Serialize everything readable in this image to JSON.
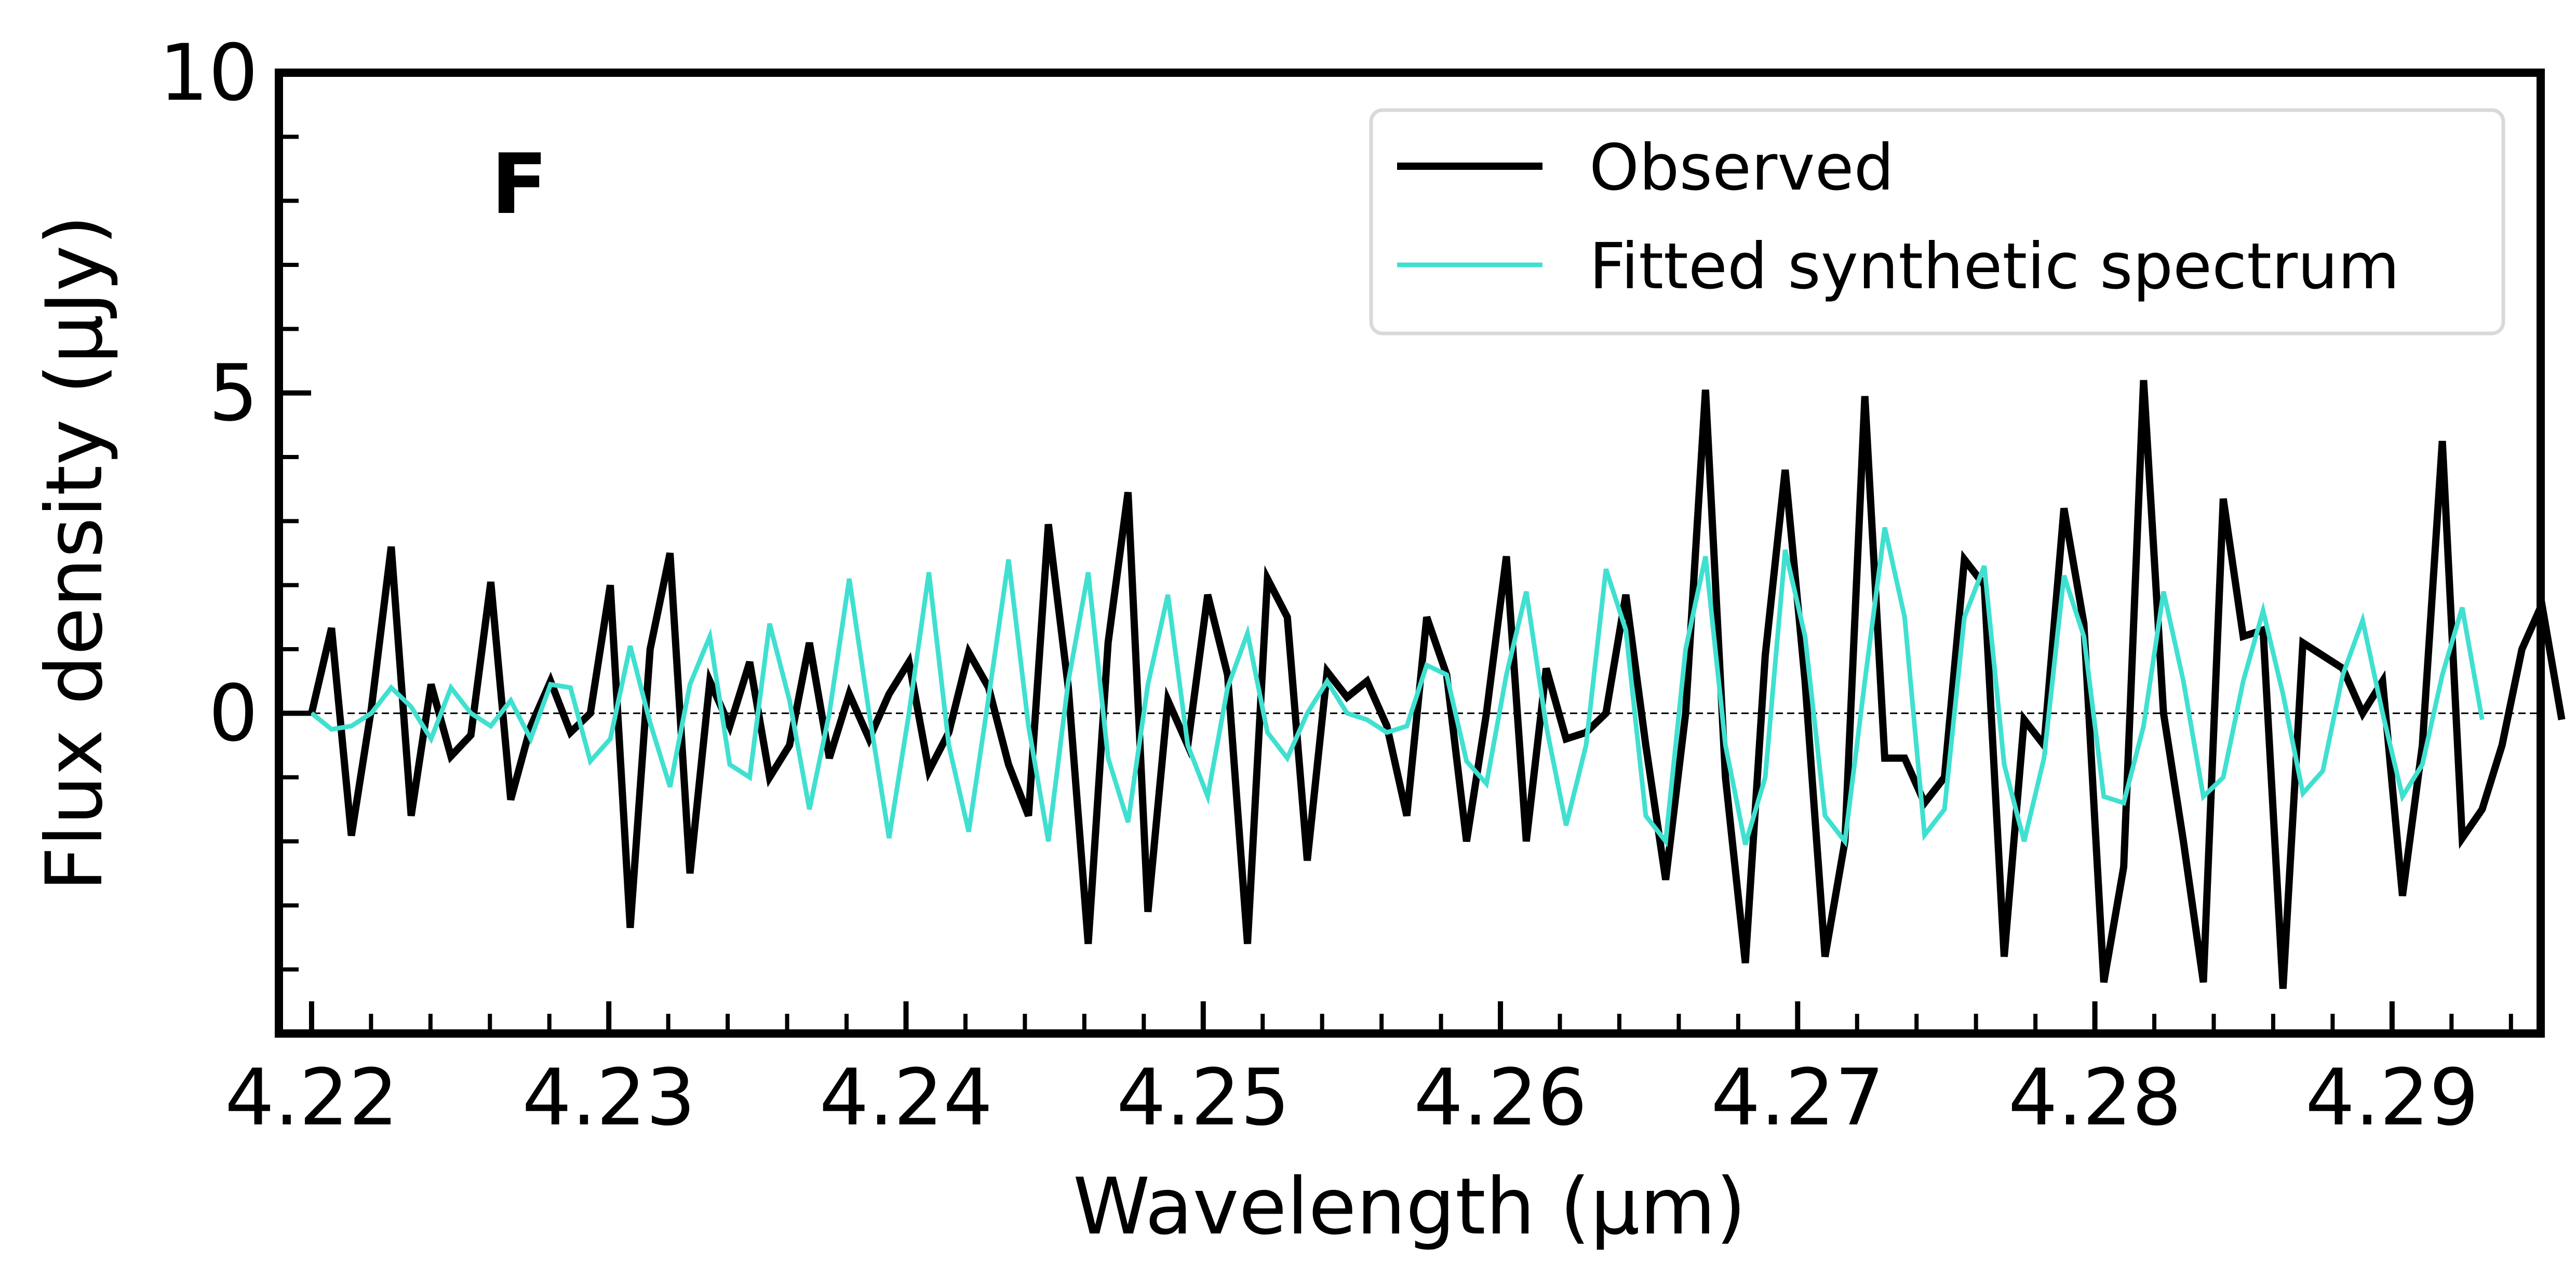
{
  "chart_data": {
    "type": "line",
    "panel_label": "F",
    "xlabel": "Wavelength (μm)",
    "ylabel": "Flux density (μJy)",
    "xlim": [
      4.2189,
      4.295
    ],
    "ylim": [
      -5,
      10
    ],
    "x_ticks": [
      4.22,
      4.23,
      4.24,
      4.25,
      4.26,
      4.27,
      4.28,
      4.29
    ],
    "x_tick_labels": [
      "4.22",
      "4.23",
      "4.24",
      "4.25",
      "4.26",
      "4.27",
      "4.28",
      "4.29"
    ],
    "y_ticks": [
      0,
      5,
      10
    ],
    "y_tick_labels": [
      "0",
      "5",
      "10"
    ],
    "x_minor_step": 0.002,
    "y_minor_step": 1,
    "reference_line": 0,
    "legend_position": "upper right",
    "colors": {
      "observed": "#000000",
      "fit": "#40E0D0",
      "reference": "#000000",
      "frame": "#000000"
    },
    "x_start": 4.22,
    "x_step": 0.00067,
    "series": [
      {
        "name": "Observed",
        "values": [
          0.0,
          1.33,
          -1.91,
          0.07,
          2.6,
          -1.6,
          0.45,
          -0.67,
          -0.34,
          2.05,
          -1.35,
          -0.21,
          0.5,
          -0.3,
          0.0,
          2.0,
          -3.35,
          1.0,
          2.5,
          -2.5,
          0.5,
          -0.2,
          0.8,
          -1.0,
          -0.5,
          1.1,
          -0.7,
          0.3,
          -0.4,
          0.3,
          0.8,
          -0.9,
          -0.3,
          0.95,
          0.4,
          -0.8,
          -1.6,
          2.95,
          0.4,
          -3.6,
          1.1,
          3.45,
          -3.1,
          0.2,
          -0.5,
          1.85,
          0.6,
          -3.6,
          2.1,
          1.5,
          -2.3,
          0.65,
          0.25,
          0.5,
          -0.2,
          -1.6,
          1.5,
          0.6,
          -2.0,
          0.0,
          2.45,
          -2.0,
          0.7,
          -0.4,
          -0.3,
          0.0,
          1.85,
          -0.5,
          -2.6,
          0.0,
          5.05,
          -1.0,
          -3.9,
          0.9,
          3.8,
          0.5,
          -3.8,
          -2.0,
          4.95,
          -0.7,
          -0.7,
          -1.4,
          -1.0,
          2.4,
          2.0,
          -3.8,
          -0.1,
          -0.5,
          3.2,
          1.4,
          -4.2,
          -2.4,
          5.2,
          0.0,
          -2.0,
          -4.2,
          3.35,
          1.2,
          1.3,
          -4.3,
          1.1,
          0.9,
          0.7,
          0.0,
          0.5,
          -2.85,
          -0.5,
          4.25,
          -1.95,
          -1.5,
          -0.5,
          1.0,
          1.7,
          -0.1
        ]
      },
      {
        "name": "Fitted synthetic spectrum",
        "values": [
          0.0,
          -0.25,
          -0.2,
          0.0,
          0.4,
          0.1,
          -0.4,
          0.4,
          0.0,
          -0.2,
          0.2,
          -0.4,
          0.45,
          0.4,
          -0.75,
          -0.4,
          1.05,
          -0.15,
          -1.15,
          0.45,
          1.2,
          -0.8,
          -1.0,
          1.4,
          0.2,
          -1.5,
          0.0,
          2.1,
          0.0,
          -1.95,
          0.0,
          2.2,
          -0.5,
          -1.85,
          0.25,
          2.4,
          -0.2,
          -2.0,
          0.5,
          2.2,
          -0.7,
          -1.7,
          0.45,
          1.85,
          -0.5,
          -1.3,
          0.4,
          1.25,
          -0.3,
          -0.7,
          0.0,
          0.5,
          0.0,
          -0.1,
          -0.3,
          -0.2,
          0.75,
          0.6,
          -0.75,
          -1.1,
          0.6,
          1.9,
          -0.2,
          -1.75,
          -0.5,
          2.25,
          1.3,
          -1.6,
          -2.0,
          1.0,
          2.45,
          -0.5,
          -2.05,
          -1.0,
          2.55,
          1.2,
          -1.6,
          -2.0,
          0.5,
          2.9,
          1.5,
          -1.9,
          -1.5,
          1.5,
          2.3,
          -0.8,
          -2.0,
          -0.7,
          2.15,
          1.2,
          -1.3,
          -1.4,
          -0.2,
          1.9,
          0.5,
          -1.3,
          -1.0,
          0.5,
          1.6,
          0.3,
          -1.25,
          -0.9,
          0.6,
          1.45,
          0.0,
          -1.3,
          -0.8,
          0.6,
          1.65,
          -0.1
        ]
      }
    ]
  }
}
